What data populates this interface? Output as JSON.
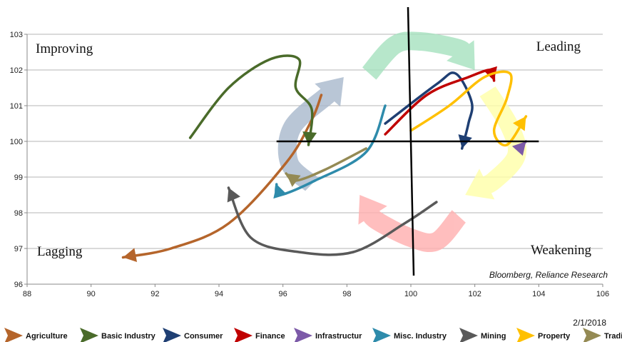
{
  "chart_data": {
    "type": "line",
    "title": "",
    "xlabel": "",
    "ylabel": "",
    "xlim": [
      88,
      106
    ],
    "ylim": [
      96,
      103
    ],
    "x_ticks": [
      88,
      90,
      92,
      94,
      96,
      98,
      100,
      102,
      104,
      106
    ],
    "y_ticks": [
      96,
      97,
      98,
      99,
      100,
      101,
      102,
      103
    ],
    "grid": "horizontal",
    "legend_position": "bottom",
    "center": [
      100,
      100
    ],
    "quadrants": [
      {
        "label": "Improving",
        "position": "top-left"
      },
      {
        "label": "Leading",
        "position": "top-right"
      },
      {
        "label": "Lagging",
        "position": "bottom-left"
      },
      {
        "label": "Weakening",
        "position": "bottom-right"
      }
    ],
    "source": "Bloomberg, Reliance Research",
    "date": "2/1/2018",
    "rotation_arrows": [
      {
        "quadrant": "top-left",
        "color": "#a8b8cc",
        "points": [
          [
            96.9,
            98.8
          ],
          [
            96.2,
            99.4
          ],
          [
            96.3,
            100.4
          ],
          [
            97.4,
            101.3
          ],
          [
            97.9,
            101.8
          ]
        ]
      },
      {
        "quadrant": "top-right",
        "color": "#a6e2bf",
        "points": [
          [
            98.7,
            101.9
          ],
          [
            99.5,
            102.7
          ],
          [
            100.3,
            102.8
          ],
          [
            101.5,
            102.6
          ],
          [
            102.0,
            102.0
          ]
        ]
      },
      {
        "quadrant": "bottom-right",
        "color": "#ffffa8",
        "points": [
          [
            102.4,
            101.4
          ],
          [
            103.1,
            100.4
          ],
          [
            103.3,
            99.6
          ],
          [
            102.6,
            98.9
          ],
          [
            101.7,
            98.5
          ]
        ]
      },
      {
        "quadrant": "bottom-left",
        "color": "#ffafaf",
        "points": [
          [
            101.5,
            97.9
          ],
          [
            100.8,
            97.2
          ],
          [
            100.0,
            97.3
          ],
          [
            98.9,
            97.8
          ],
          [
            98.4,
            98.5
          ]
        ]
      }
    ],
    "series": [
      {
        "name": "Agriculture",
        "color": "#b5652b",
        "points": [
          [
            97.2,
            101.3
          ],
          [
            96.9,
            100.6
          ],
          [
            96.1,
            99.4
          ],
          [
            94.3,
            97.7
          ],
          [
            92.5,
            97.0
          ],
          [
            91.0,
            96.75
          ]
        ]
      },
      {
        "name": "Basic Industry",
        "color": "#4a6b2a",
        "points": [
          [
            93.1,
            100.1
          ],
          [
            94.3,
            101.5
          ],
          [
            95.6,
            102.3
          ],
          [
            96.5,
            102.3
          ],
          [
            96.4,
            101.5
          ],
          [
            96.9,
            100.9
          ],
          [
            96.8,
            99.9
          ]
        ]
      },
      {
        "name": "Consumer",
        "color": "#1f3f73",
        "points": [
          [
            99.2,
            100.5
          ],
          [
            100.8,
            101.6
          ],
          [
            101.4,
            101.9
          ],
          [
            101.9,
            101.1
          ],
          [
            101.8,
            100.5
          ],
          [
            101.6,
            99.8
          ]
        ]
      },
      {
        "name": "Finance",
        "color": "#c00000",
        "points": [
          [
            99.2,
            100.2
          ],
          [
            100.5,
            101.3
          ],
          [
            101.8,
            101.8
          ],
          [
            102.5,
            102.0
          ],
          [
            102.6,
            101.7
          ]
        ]
      },
      {
        "name": "Infrastructur",
        "color": "#7c5aa8",
        "points": [
          [
            103.4,
            99.8
          ],
          [
            103.6,
            100.0
          ]
        ]
      },
      {
        "name": "Misc. Industry",
        "color": "#2e8bab",
        "points": [
          [
            99.2,
            101.0
          ],
          [
            98.6,
            99.7
          ],
          [
            97.0,
            98.9
          ],
          [
            95.9,
            98.5
          ],
          [
            95.8,
            98.8
          ]
        ]
      },
      {
        "name": "Mining",
        "color": "#595959",
        "points": [
          [
            100.8,
            98.3
          ],
          [
            99.8,
            97.7
          ],
          [
            98.2,
            96.9
          ],
          [
            96.5,
            96.9
          ],
          [
            95.0,
            97.3
          ],
          [
            94.3,
            98.7
          ]
        ]
      },
      {
        "name": "Property",
        "color": "#ffc000",
        "points": [
          [
            100.0,
            100.3
          ],
          [
            101.2,
            101.0
          ],
          [
            102.3,
            101.8
          ],
          [
            103.1,
            101.9
          ],
          [
            103.0,
            101.2
          ],
          [
            102.6,
            100.3
          ],
          [
            103.0,
            99.9
          ],
          [
            103.6,
            100.7
          ]
        ]
      },
      {
        "name": "Trading",
        "color": "#948a54",
        "points": [
          [
            98.6,
            99.8
          ],
          [
            97.3,
            99.2
          ],
          [
            96.4,
            98.9
          ],
          [
            96.1,
            99.1
          ]
        ]
      }
    ]
  }
}
